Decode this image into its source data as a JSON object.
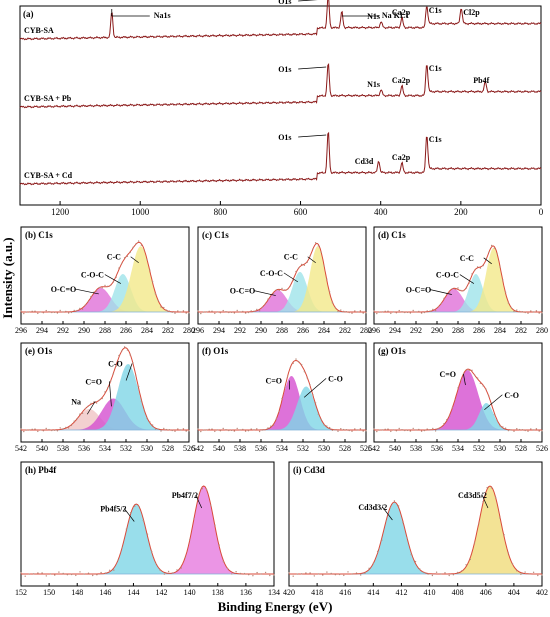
{
  "axes": {
    "xlabel": "Binding Energy (eV)",
    "ylabel": "Intensity (a.u.)"
  },
  "colors": {
    "survey_line": "#8b1a1a",
    "fit_envelope": "#d84a3a",
    "raw_points": "#b88a7a",
    "C-C": "#f2e98a",
    "C-O-C": "#9fe3ea",
    "O-C=O": "#e070d8",
    "C-O": "#7fd6e6",
    "C=O": "#d44fd0",
    "Na": "#f0c4c4",
    "Pb4f7/2": "#e67adf",
    "Pb4f5/2": "#7fd6e6",
    "Cd3d5/2": "#f0dc7a",
    "Cd3d3/2": "#7fd6e6"
  },
  "chart_data": [
    {
      "id": "a",
      "label": "(a)",
      "type": "line",
      "x_range": [
        1300,
        0
      ],
      "x_ticks": [
        1200,
        1000,
        800,
        600,
        400,
        200,
        0
      ],
      "series": [
        {
          "name": "CYB-SA",
          "peaks": [
            {
              "label": "Na1s",
              "x": 1071
            },
            {
              "label": "O1s",
              "x": 531
            },
            {
              "label": "Na KL1",
              "x": 497
            },
            {
              "label": "N1s",
              "x": 399
            },
            {
              "label": "Ca2p",
              "x": 347
            },
            {
              "label": "C1s",
              "x": 285
            },
            {
              "label": "Cl2p",
              "x": 199
            }
          ]
        },
        {
          "name": "CYB-SA + Pb",
          "peaks": [
            {
              "label": "O1s",
              "x": 531
            },
            {
              "label": "N1s",
              "x": 399
            },
            {
              "label": "Ca2p",
              "x": 347
            },
            {
              "label": "C1s",
              "x": 285
            },
            {
              "label": "Pb4f",
              "x": 139
            }
          ]
        },
        {
          "name": "CYB-SA + Cd",
          "peaks": [
            {
              "label": "O1s",
              "x": 531
            },
            {
              "label": "Cd3d",
              "x": 405
            },
            {
              "label": "Ca2p",
              "x": 347
            },
            {
              "label": "C1s",
              "x": 285
            }
          ]
        }
      ]
    },
    {
      "id": "b",
      "label": "(b) C1s",
      "type": "area",
      "x_range": [
        296,
        280
      ],
      "x_ticks": [
        296,
        294,
        292,
        290,
        288,
        286,
        284,
        282,
        280
      ],
      "components": [
        {
          "name": "O-C=O",
          "center": 288.4,
          "height": 0.33,
          "fwhm": 2.2
        },
        {
          "name": "C-O-C",
          "center": 286.3,
          "height": 0.52,
          "fwhm": 1.8
        },
        {
          "name": "C-C",
          "center": 284.6,
          "height": 0.9,
          "fwhm": 2.1
        }
      ]
    },
    {
      "id": "c",
      "label": "(c) C1s",
      "type": "area",
      "x_range": [
        296,
        280
      ],
      "x_ticks": [
        296,
        294,
        292,
        290,
        288,
        286,
        284,
        282,
        280
      ],
      "components": [
        {
          "name": "O-C=O",
          "center": 288.4,
          "height": 0.3,
          "fwhm": 2.0
        },
        {
          "name": "C-O-C",
          "center": 286.3,
          "height": 0.55,
          "fwhm": 1.7
        },
        {
          "name": "C-C",
          "center": 284.6,
          "height": 0.9,
          "fwhm": 1.7
        }
      ]
    },
    {
      "id": "d",
      "label": "(d) C1s",
      "type": "area",
      "x_range": [
        296,
        280
      ],
      "x_ticks": [
        296,
        294,
        292,
        290,
        288,
        286,
        284,
        282,
        280
      ],
      "components": [
        {
          "name": "O-C=O",
          "center": 288.4,
          "height": 0.32,
          "fwhm": 2.0
        },
        {
          "name": "C-O-C",
          "center": 286.3,
          "height": 0.52,
          "fwhm": 1.6
        },
        {
          "name": "C-C",
          "center": 284.6,
          "height": 0.88,
          "fwhm": 1.7
        }
      ]
    },
    {
      "id": "e",
      "label": "(e) O1s",
      "type": "area",
      "x_range": [
        542,
        526
      ],
      "x_ticks": [
        542,
        540,
        538,
        536,
        534,
        532,
        530,
        528,
        526
      ],
      "components": [
        {
          "name": "Na",
          "center": 535.5,
          "height": 0.28,
          "fwhm": 2.4
        },
        {
          "name": "C=O",
          "center": 533.2,
          "height": 0.42,
          "fwhm": 2.6
        },
        {
          "name": "C-O",
          "center": 531.8,
          "height": 0.88,
          "fwhm": 2.3
        }
      ]
    },
    {
      "id": "f",
      "label": "(f) O1s",
      "type": "area",
      "x_range": [
        542,
        526
      ],
      "x_ticks": [
        542,
        540,
        538,
        536,
        534,
        532,
        530,
        528,
        526
      ],
      "components": [
        {
          "name": "C=O",
          "center": 533.1,
          "height": 0.72,
          "fwhm": 1.9
        },
        {
          "name": "C-O",
          "center": 531.7,
          "height": 0.58,
          "fwhm": 2.0
        }
      ]
    },
    {
      "id": "g",
      "label": "(g) O1s",
      "type": "area",
      "x_range": [
        542,
        526
      ],
      "x_ticks": [
        542,
        540,
        538,
        536,
        534,
        532,
        530,
        528,
        526
      ],
      "components": [
        {
          "name": "C=O",
          "center": 533.1,
          "height": 0.8,
          "fwhm": 2.4
        },
        {
          "name": "C-O",
          "center": 531.3,
          "height": 0.36,
          "fwhm": 1.6
        }
      ]
    },
    {
      "id": "h",
      "label": "(h) Pb4f",
      "type": "area",
      "x_range": [
        152,
        134
      ],
      "x_ticks": [
        152,
        150,
        148,
        146,
        144,
        142,
        140,
        138,
        136,
        134
      ],
      "components": [
        {
          "name": "Pb4f5/2",
          "center": 143.8,
          "height": 0.7,
          "fwhm": 1.7
        },
        {
          "name": "Pb4f7/2",
          "center": 139.0,
          "height": 0.88,
          "fwhm": 1.7
        }
      ]
    },
    {
      "id": "i",
      "label": "(i) Cd3d",
      "type": "area",
      "x_range": [
        420,
        402
      ],
      "x_ticks": [
        420,
        418,
        416,
        414,
        412,
        410,
        408,
        406,
        404,
        402
      ],
      "components": [
        {
          "name": "Cd3d3/2",
          "center": 412.5,
          "height": 0.72,
          "fwhm": 1.8
        },
        {
          "name": "Cd3d5/2",
          "center": 405.7,
          "height": 0.88,
          "fwhm": 1.8
        }
      ]
    }
  ]
}
